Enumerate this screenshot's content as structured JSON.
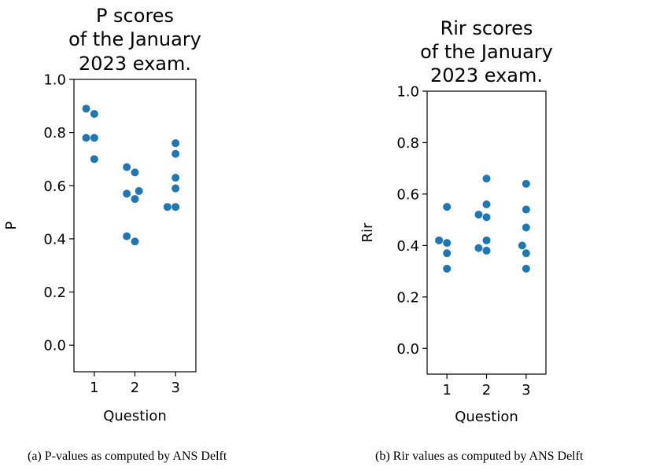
{
  "chart_data": [
    {
      "type": "scatter",
      "title": [
        "P scores",
        "of the January",
        "2023 exam."
      ],
      "xlabel": "Question",
      "ylabel": "P",
      "x_ticks": [
        "1",
        "2",
        "3"
      ],
      "y_ticks": [
        "0.0",
        "0.2",
        "0.4",
        "0.6",
        "0.8",
        "1.0"
      ],
      "xlim": [
        0.5,
        3.5
      ],
      "ylim": [
        -0.1,
        1.0
      ],
      "grid": false,
      "color": "#1f77b4",
      "points": [
        {
          "x": 0.8,
          "y": 0.78
        },
        {
          "x": 0.8,
          "y": 0.89
        },
        {
          "x": 1.0,
          "y": 0.87
        },
        {
          "x": 1.0,
          "y": 0.78
        },
        {
          "x": 1.0,
          "y": 0.7
        },
        {
          "x": 1.8,
          "y": 0.67
        },
        {
          "x": 1.8,
          "y": 0.57
        },
        {
          "x": 1.8,
          "y": 0.41
        },
        {
          "x": 2.0,
          "y": 0.65
        },
        {
          "x": 2.0,
          "y": 0.55
        },
        {
          "x": 2.1,
          "y": 0.58
        },
        {
          "x": 2.0,
          "y": 0.39
        },
        {
          "x": 2.8,
          "y": 0.52
        },
        {
          "x": 3.0,
          "y": 0.52
        },
        {
          "x": 3.0,
          "y": 0.76
        },
        {
          "x": 3.0,
          "y": 0.72
        },
        {
          "x": 3.0,
          "y": 0.63
        },
        {
          "x": 3.0,
          "y": 0.59
        }
      ],
      "caption": "(a) P-values as computed by ANS Delft"
    },
    {
      "type": "scatter",
      "title": [
        "Rir scores",
        "of the January",
        "2023 exam."
      ],
      "xlabel": "Question",
      "ylabel": "Rir",
      "x_ticks": [
        "1",
        "2",
        "3"
      ],
      "y_ticks": [
        "0.0",
        "0.2",
        "0.4",
        "0.6",
        "0.8",
        "1.0"
      ],
      "xlim": [
        0.5,
        3.5
      ],
      "ylim": [
        -0.1,
        1.0
      ],
      "grid": false,
      "color": "#1f77b4",
      "points": [
        {
          "x": 0.8,
          "y": 0.42
        },
        {
          "x": 1.0,
          "y": 0.55
        },
        {
          "x": 1.0,
          "y": 0.41
        },
        {
          "x": 1.0,
          "y": 0.37
        },
        {
          "x": 1.0,
          "y": 0.31
        },
        {
          "x": 1.8,
          "y": 0.52
        },
        {
          "x": 1.8,
          "y": 0.39
        },
        {
          "x": 2.0,
          "y": 0.66
        },
        {
          "x": 2.0,
          "y": 0.56
        },
        {
          "x": 2.0,
          "y": 0.51
        },
        {
          "x": 2.0,
          "y": 0.42
        },
        {
          "x": 2.0,
          "y": 0.38
        },
        {
          "x": 2.9,
          "y": 0.4
        },
        {
          "x": 3.0,
          "y": 0.64
        },
        {
          "x": 3.0,
          "y": 0.54
        },
        {
          "x": 3.0,
          "y": 0.47
        },
        {
          "x": 3.0,
          "y": 0.37
        },
        {
          "x": 3.0,
          "y": 0.31
        }
      ],
      "caption": "(b) Rir values as computed by ANS Delft"
    }
  ]
}
